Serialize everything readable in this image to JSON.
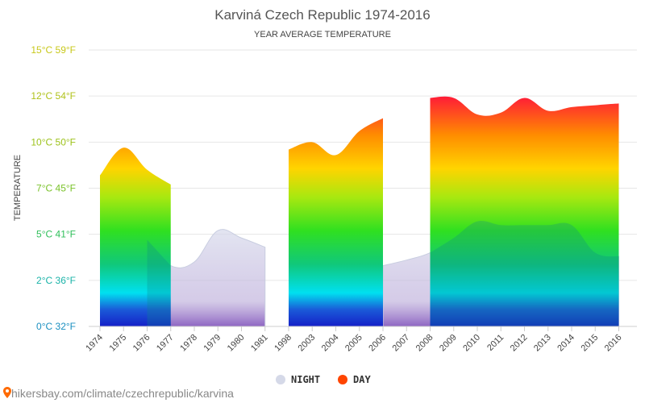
{
  "watermark": "hikersbay.com/climate/czechrepublic/karvina",
  "chart_data": {
    "type": "area",
    "title": "Karviná Czech Republic 1974-2016",
    "subtitle": "YEAR AVERAGE TEMPERATURE",
    "ylabel": "TEMPERATURE",
    "ylim": [
      0,
      15
    ],
    "y_ticks": [
      {
        "value": 0,
        "label": "0°C 32°F",
        "color": "#1a8fc0"
      },
      {
        "value": 2.5,
        "label": "2°C 36°F",
        "color": "#1ab3a8"
      },
      {
        "value": 5,
        "label": "5°C 41°F",
        "color": "#2fbf5a"
      },
      {
        "value": 7.5,
        "label": "7°C 45°F",
        "color": "#7ac22a"
      },
      {
        "value": 10,
        "label": "10°C 50°F",
        "color": "#9cc21a"
      },
      {
        "value": 12.5,
        "label": "12°C 54°F",
        "color": "#b0c21a"
      },
      {
        "value": 15,
        "label": "15°C 59°F",
        "color": "#c8c81a"
      }
    ],
    "categories": [
      "1974",
      "1975",
      "1976",
      "1977",
      "1978",
      "1979",
      "1980",
      "1981",
      "1998",
      "2003",
      "2004",
      "2005",
      "2006",
      "2007",
      "2008",
      "2009",
      "2010",
      "2011",
      "2012",
      "2013",
      "2014",
      "2015",
      "2016"
    ],
    "series": [
      {
        "name": "NIGHT",
        "legend_color": "#d5d9e8",
        "values": [
          null,
          null,
          4.7,
          3.3,
          3.5,
          5.2,
          4.8,
          4.3,
          null,
          null,
          null,
          null,
          3.3,
          3.6,
          4.0,
          4.8,
          5.7,
          5.5,
          5.5,
          5.5,
          5.5,
          4.0,
          3.8
        ]
      },
      {
        "name": "DAY",
        "legend_color": "#ff4500",
        "values": [
          8.2,
          9.7,
          8.5,
          7.7,
          null,
          null,
          null,
          null,
          9.6,
          10.0,
          9.3,
          10.6,
          11.3,
          null,
          12.4,
          12.4,
          11.5,
          11.6,
          12.4,
          11.7,
          11.9,
          12.0,
          12.1
        ]
      }
    ],
    "legend": {
      "position": "bottom-center",
      "items": [
        "NIGHT",
        "DAY"
      ]
    },
    "grid": true
  }
}
